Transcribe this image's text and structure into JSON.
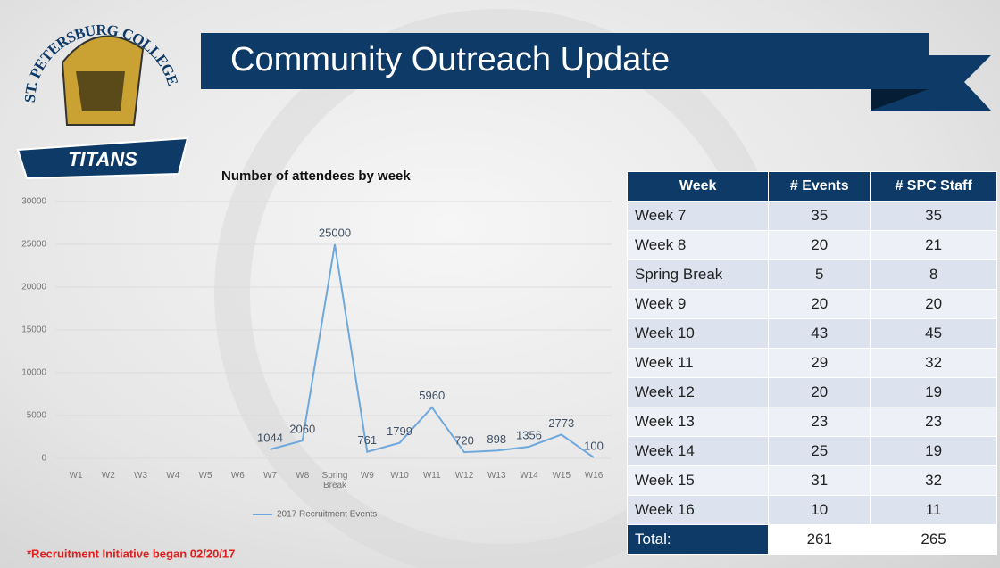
{
  "header": {
    "title": "Community Outreach Update"
  },
  "logo": {
    "arc_text": "ST. PETERSBURG COLLEGE",
    "banner_text": "TITANS"
  },
  "chart_data": {
    "type": "line",
    "title": "Number of attendees by week",
    "categories": [
      "W1",
      "W2",
      "W3",
      "W4",
      "W5",
      "W6",
      "W7",
      "W8",
      "Spring Break",
      "W9",
      "W10",
      "W11",
      "W12",
      "W13",
      "W14",
      "W15",
      "W16"
    ],
    "series": [
      {
        "name": "2017 Recruitment Events",
        "color": "#6fa8dc",
        "values": [
          null,
          null,
          null,
          null,
          null,
          null,
          1044,
          2060,
          25000,
          761,
          1799,
          5960,
          720,
          898,
          1356,
          2773,
          100
        ]
      }
    ],
    "ylim": [
      0,
      30000
    ],
    "yticks": [
      0,
      5000,
      10000,
      15000,
      20000,
      25000,
      30000
    ],
    "grid": true,
    "legend": "bottom"
  },
  "table": {
    "header": [
      "Week",
      "# Events",
      "# SPC Staff"
    ],
    "rows": [
      [
        "Week 7",
        "35",
        "35"
      ],
      [
        "Week 8",
        "20",
        "21"
      ],
      [
        "Spring Break",
        "5",
        "8"
      ],
      [
        "Week 9",
        "20",
        "20"
      ],
      [
        "Week 10",
        "43",
        "45"
      ],
      [
        "Week 11",
        "29",
        "32"
      ],
      [
        "Week 12",
        "20",
        "19"
      ],
      [
        "Week 13",
        "23",
        "23"
      ],
      [
        "Week 14",
        "25",
        "19"
      ],
      [
        "Week 15",
        "31",
        "32"
      ],
      [
        "Week 16",
        "10",
        "11"
      ]
    ],
    "total": [
      "Total:",
      "261",
      "265"
    ]
  },
  "footnote": "*Recruitment Initiative began 02/20/17"
}
